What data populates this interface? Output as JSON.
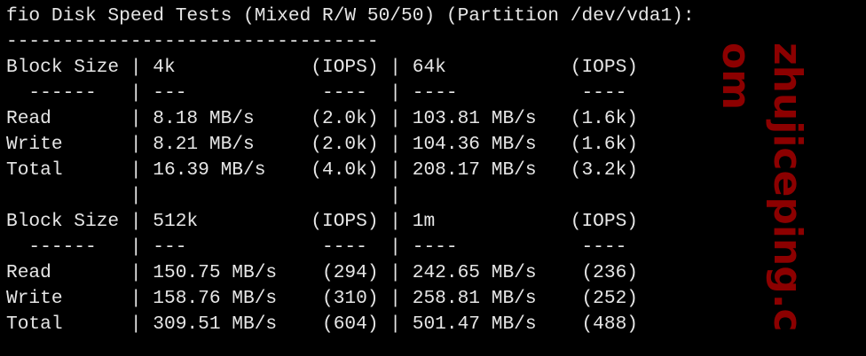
{
  "terminal": {
    "lines": [
      "fio Disk Speed Tests (Mixed R/W 50/50) (Partition /dev/vda1):",
      "---------------------------------",
      "Block Size | 4k            (IOPS) | 64k           (IOPS)",
      "  ------   | ---            ----  | ----           ---- ",
      "Read       | 8.18 MB/s     (2.0k) | 103.81 MB/s   (1.6k)",
      "Write      | 8.21 MB/s     (2.0k) | 104.36 MB/s   (1.6k)",
      "Total      | 16.39 MB/s    (4.0k) | 208.17 MB/s   (3.2k)",
      "           |                      |                     ",
      "Block Size | 512k          (IOPS) | 1m            (IOPS)",
      "  ------   | ---            ----  | ----           ---- ",
      "Read       | 150.75 MB/s    (294) | 242.65 MB/s    (236)",
      "Write      | 158.76 MB/s    (310) | 258.81 MB/s    (252)",
      "Total      | 309.51 MB/s    (604) | 501.47 MB/s    (488)"
    ]
  },
  "watermark": {
    "text": "zhujiceping.com",
    "color": "#8c0000"
  },
  "colors": {
    "background": "#000000",
    "text": "#e6e6e6"
  }
}
